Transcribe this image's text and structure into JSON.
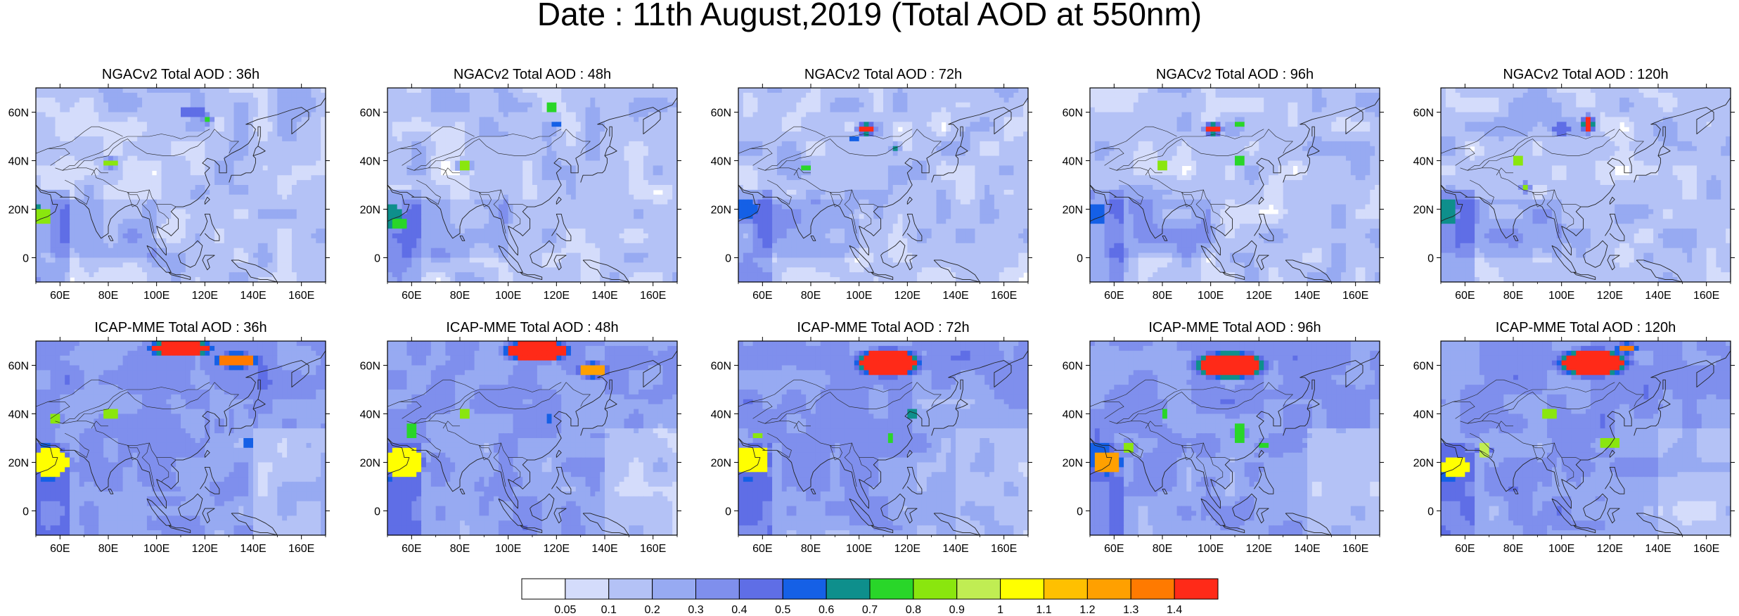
{
  "title": "Date : 11th August,2019 (Total AOD at 550nm)",
  "chart_data": {
    "type": "heatmap",
    "title": "Date : 11th August,2019 (Total AOD at 550nm)",
    "x_ticks": [
      "60E",
      "80E",
      "100E",
      "120E",
      "140E",
      "160E"
    ],
    "x_tick_values": [
      60,
      80,
      100,
      120,
      140,
      160
    ],
    "y_ticks": [
      "60N",
      "40N",
      "20N",
      "0"
    ],
    "y_tick_values": [
      60,
      40,
      20,
      0
    ],
    "xlim": [
      50,
      170
    ],
    "ylim": [
      -10,
      70
    ],
    "colorbar": {
      "labels": [
        "0.05",
        "0.1",
        "0.2",
        "0.3",
        "0.4",
        "0.5",
        "0.6",
        "0.7",
        "0.8",
        "0.9",
        "1",
        "1.1",
        "1.2",
        "1.3",
        "1.4"
      ],
      "colors": [
        "#ffffff",
        "#d4dcfb",
        "#b4c2f6",
        "#97aaf2",
        "#7f8fed",
        "#5f6ee6",
        "#1560e6",
        "#0e8f8c",
        "#29d629",
        "#8ae60e",
        "#c0ed53",
        "#ffff00",
        "#ffc000",
        "#ffa000",
        "#ff7a00",
        "#ff2a18"
      ]
    },
    "panels": [
      {
        "title": "NGACv2 Total AOD : 36h",
        "row": 0,
        "col": 0,
        "model": "NGACv2",
        "hotspots": [
          {
            "lon": 49,
            "lat": 18,
            "v": 0.65,
            "rx": 4,
            "ry": 5
          },
          {
            "lon": 53,
            "lat": 17,
            "v": 0.85,
            "rx": 3,
            "ry": 3
          },
          {
            "lon": 81,
            "lat": 39,
            "v": 0.85,
            "rx": 3,
            "ry": 2
          },
          {
            "lon": 121,
            "lat": 57,
            "v": 0.75,
            "rx": 2,
            "ry": 2
          },
          {
            "lon": 115,
            "lat": 60,
            "v": 0.45,
            "rx": 6,
            "ry": 3
          }
        ]
      },
      {
        "title": "NGACv2 Total AOD : 48h",
        "row": 0,
        "col": 1,
        "model": "NGACv2",
        "hotspots": [
          {
            "lon": 52,
            "lat": 17,
            "v": 0.6,
            "rx": 5,
            "ry": 5
          },
          {
            "lon": 55,
            "lat": 14,
            "v": 0.75,
            "rx": 3,
            "ry": 3
          },
          {
            "lon": 82,
            "lat": 38,
            "v": 0.8,
            "rx": 3,
            "ry": 2
          },
          {
            "lon": 118,
            "lat": 62,
            "v": 0.7,
            "rx": 2,
            "ry": 2
          },
          {
            "lon": 120,
            "lat": 55,
            "v": 0.55,
            "rx": 2,
            "ry": 2
          }
        ]
      },
      {
        "title": "NGACv2 Total AOD : 72h",
        "row": 0,
        "col": 2,
        "model": "NGACv2",
        "hotspots": [
          {
            "lon": 103,
            "lat": 53,
            "v": 1.45,
            "rx": 3,
            "ry": 2
          },
          {
            "lon": 98,
            "lat": 49,
            "v": 0.55,
            "rx": 2,
            "ry": 2
          },
          {
            "lon": 115,
            "lat": 45,
            "v": 0.6,
            "rx": 2,
            "ry": 2
          },
          {
            "lon": 78,
            "lat": 37,
            "v": 0.7,
            "rx": 2,
            "ry": 2
          },
          {
            "lon": 53,
            "lat": 20,
            "v": 0.5,
            "rx": 5,
            "ry": 5
          }
        ]
      },
      {
        "title": "NGACv2 Total AOD : 96h",
        "row": 0,
        "col": 3,
        "model": "NGACv2",
        "hotspots": [
          {
            "lon": 101,
            "lat": 53,
            "v": 1.45,
            "rx": 3,
            "ry": 2
          },
          {
            "lon": 112,
            "lat": 55,
            "v": 0.75,
            "rx": 2,
            "ry": 2
          },
          {
            "lon": 80,
            "lat": 38,
            "v": 0.85,
            "rx": 2,
            "ry": 2
          },
          {
            "lon": 112,
            "lat": 40,
            "v": 0.75,
            "rx": 2,
            "ry": 2
          },
          {
            "lon": 52,
            "lat": 18,
            "v": 0.55,
            "rx": 5,
            "ry": 5
          }
        ]
      },
      {
        "title": "NGACv2 Total AOD : 120h",
        "row": 0,
        "col": 4,
        "model": "NGACv2",
        "hotspots": [
          {
            "lon": 111,
            "lat": 55,
            "v": 1.45,
            "rx": 2,
            "ry": 3
          },
          {
            "lon": 100,
            "lat": 53,
            "v": 0.45,
            "rx": 4,
            "ry": 3
          },
          {
            "lon": 82,
            "lat": 40,
            "v": 0.85,
            "rx": 2,
            "ry": 2
          },
          {
            "lon": 85,
            "lat": 29,
            "v": 0.8,
            "rx": 2,
            "ry": 2
          },
          {
            "lon": 53,
            "lat": 19,
            "v": 0.6,
            "rx": 4,
            "ry": 5
          }
        ]
      },
      {
        "title": "ICAP-MME Total AOD : 36h",
        "row": 1,
        "col": 0,
        "model": "ICAP-MME",
        "hotspots": [
          {
            "lon": 110,
            "lat": 67,
            "v": 1.45,
            "rx": 12,
            "ry": 3
          },
          {
            "lon": 133,
            "lat": 62,
            "v": 1.3,
            "rx": 8,
            "ry": 3
          },
          {
            "lon": 56,
            "lat": 20,
            "v": 1.05,
            "rx": 8,
            "ry": 6
          },
          {
            "lon": 58,
            "lat": 38,
            "v": 0.8,
            "rx": 3,
            "ry": 3
          },
          {
            "lon": 81,
            "lat": 40,
            "v": 0.85,
            "rx": 3,
            "ry": 2
          },
          {
            "lon": 138,
            "lat": 28,
            "v": 0.55,
            "rx": 2,
            "ry": 2
          }
        ]
      },
      {
        "title": "ICAP-MME Total AOD : 48h",
        "row": 1,
        "col": 1,
        "model": "ICAP-MME",
        "hotspots": [
          {
            "lon": 112,
            "lat": 66,
            "v": 1.45,
            "rx": 12,
            "ry": 4
          },
          {
            "lon": 135,
            "lat": 58,
            "v": 1.2,
            "rx": 6,
            "ry": 3
          },
          {
            "lon": 57,
            "lat": 20,
            "v": 1.0,
            "rx": 8,
            "ry": 6
          },
          {
            "lon": 60,
            "lat": 33,
            "v": 0.75,
            "rx": 3,
            "ry": 3
          },
          {
            "lon": 82,
            "lat": 40,
            "v": 0.8,
            "rx": 3,
            "ry": 2
          },
          {
            "lon": 117,
            "lat": 38,
            "v": 0.55,
            "rx": 2,
            "ry": 3
          }
        ]
      },
      {
        "title": "ICAP-MME Total AOD : 72h",
        "row": 1,
        "col": 2,
        "model": "ICAP-MME",
        "hotspots": [
          {
            "lon": 112,
            "lat": 61,
            "v": 1.45,
            "rx": 12,
            "ry": 5
          },
          {
            "lon": 56,
            "lat": 21,
            "v": 1.0,
            "rx": 7,
            "ry": 6
          },
          {
            "lon": 58,
            "lat": 31,
            "v": 0.8,
            "rx": 3,
            "ry": 2
          },
          {
            "lon": 113,
            "lat": 30,
            "v": 0.7,
            "rx": 2,
            "ry": 3
          },
          {
            "lon": 122,
            "lat": 40,
            "v": 0.6,
            "rx": 2,
            "ry": 3
          }
        ]
      },
      {
        "title": "ICAP-MME Total AOD : 96h",
        "row": 1,
        "col": 3,
        "model": "ICAP-MME",
        "hotspots": [
          {
            "lon": 108,
            "lat": 60,
            "v": 1.45,
            "rx": 13,
            "ry": 5
          },
          {
            "lon": 57,
            "lat": 20,
            "v": 1.2,
            "rx": 6,
            "ry": 5
          },
          {
            "lon": 66,
            "lat": 26,
            "v": 0.85,
            "rx": 3,
            "ry": 3
          },
          {
            "lon": 112,
            "lat": 32,
            "v": 0.75,
            "rx": 3,
            "ry": 4
          },
          {
            "lon": 122,
            "lat": 27,
            "v": 0.75,
            "rx": 3,
            "ry": 2
          },
          {
            "lon": 81,
            "lat": 40,
            "v": 0.75,
            "rx": 2,
            "ry": 2
          }
        ]
      },
      {
        "title": "ICAP-MME Total AOD : 120h",
        "row": 1,
        "col": 4,
        "model": "ICAP-MME",
        "hotspots": [
          {
            "lon": 113,
            "lat": 61,
            "v": 1.45,
            "rx": 13,
            "ry": 5
          },
          {
            "lon": 127,
            "lat": 67,
            "v": 1.3,
            "rx": 4,
            "ry": 2
          },
          {
            "lon": 56,
            "lat": 18,
            "v": 1.05,
            "rx": 6,
            "ry": 5
          },
          {
            "lon": 68,
            "lat": 25,
            "v": 0.95,
            "rx": 3,
            "ry": 3
          },
          {
            "lon": 120,
            "lat": 28,
            "v": 0.85,
            "rx": 4,
            "ry": 3
          },
          {
            "lon": 95,
            "lat": 40,
            "v": 0.85,
            "rx": 3,
            "ry": 2
          }
        ]
      }
    ]
  }
}
